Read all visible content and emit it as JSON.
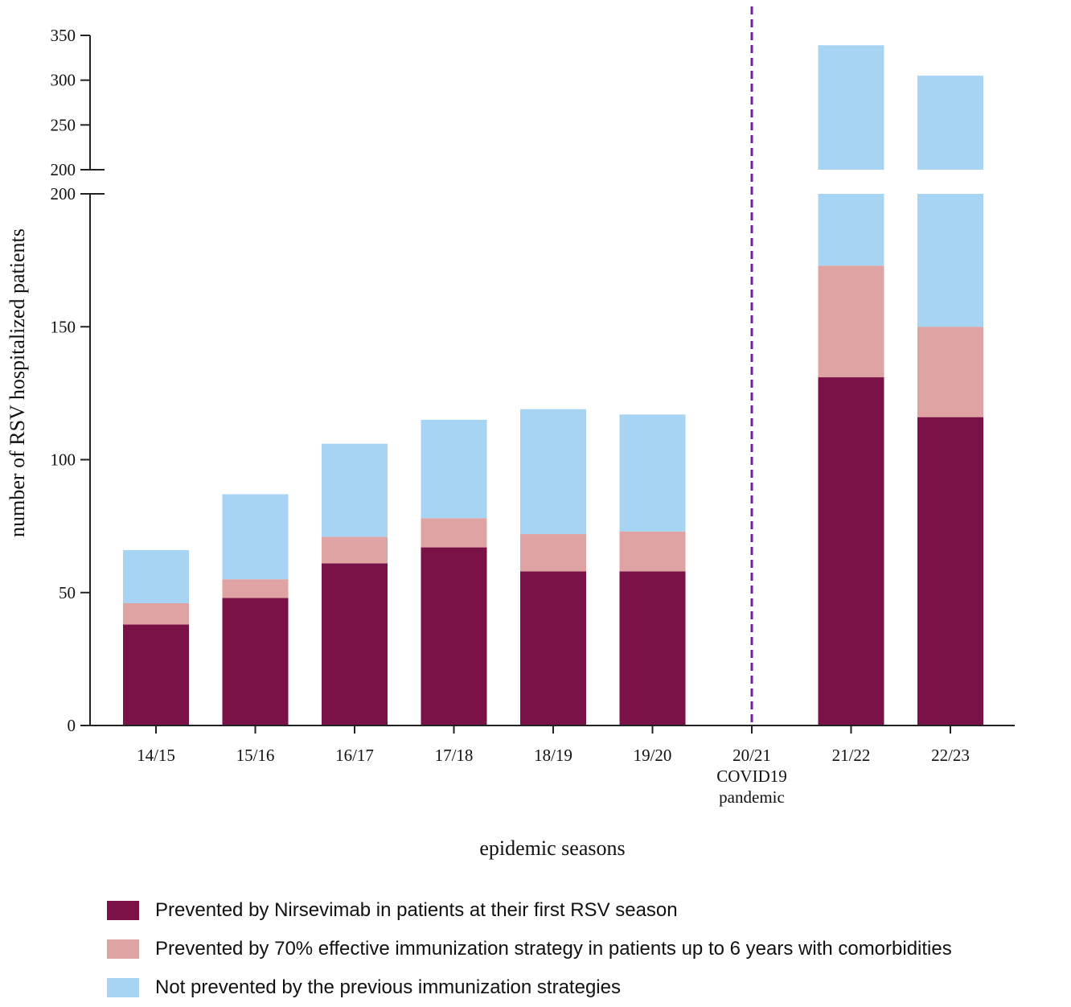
{
  "chart_data": {
    "type": "bar",
    "stacked": true,
    "title": "",
    "xlabel": "epidemic seasons",
    "ylabel": "number of RSV hospitalized patients",
    "categories": [
      "14/15",
      "15/16",
      "16/17",
      "17/18",
      "18/19",
      "19/20",
      "20/21",
      "21/22",
      "22/23"
    ],
    "category_sublabels": [
      "",
      "",
      "",
      "",
      "",
      "",
      "COVID19 pandemic",
      "",
      ""
    ],
    "separator_after_category": "19/20",
    "separator_label": "20/21",
    "ylim": [
      0,
      350
    ],
    "axis_break": {
      "lower_range": [
        0,
        200
      ],
      "upper_range": [
        200,
        350
      ]
    },
    "yticks_lower": [
      "0",
      "50",
      "100",
      "150",
      "200"
    ],
    "yticks_upper": [
      "200",
      "250",
      "300",
      "350"
    ],
    "series": [
      {
        "name": "Prevented by Nirsevimab in patients at their first RSV season",
        "color": "#7b1247",
        "values": [
          38,
          48,
          61,
          67,
          58,
          58,
          0,
          131,
          116
        ]
      },
      {
        "name": "Prevented by 70% effective immunization strategy in patients up to 6 years with comorbidities",
        "color": "#dea3a2",
        "values": [
          8,
          7,
          10,
          11,
          14,
          15,
          0,
          42,
          34
        ]
      },
      {
        "name": "Not prevented by the previous immunization strategies",
        "color": "#a8d4f4",
        "values": [
          20,
          32,
          35,
          37,
          47,
          44,
          0,
          166,
          155
        ]
      }
    ],
    "separator_color": "#7b1fa2"
  }
}
